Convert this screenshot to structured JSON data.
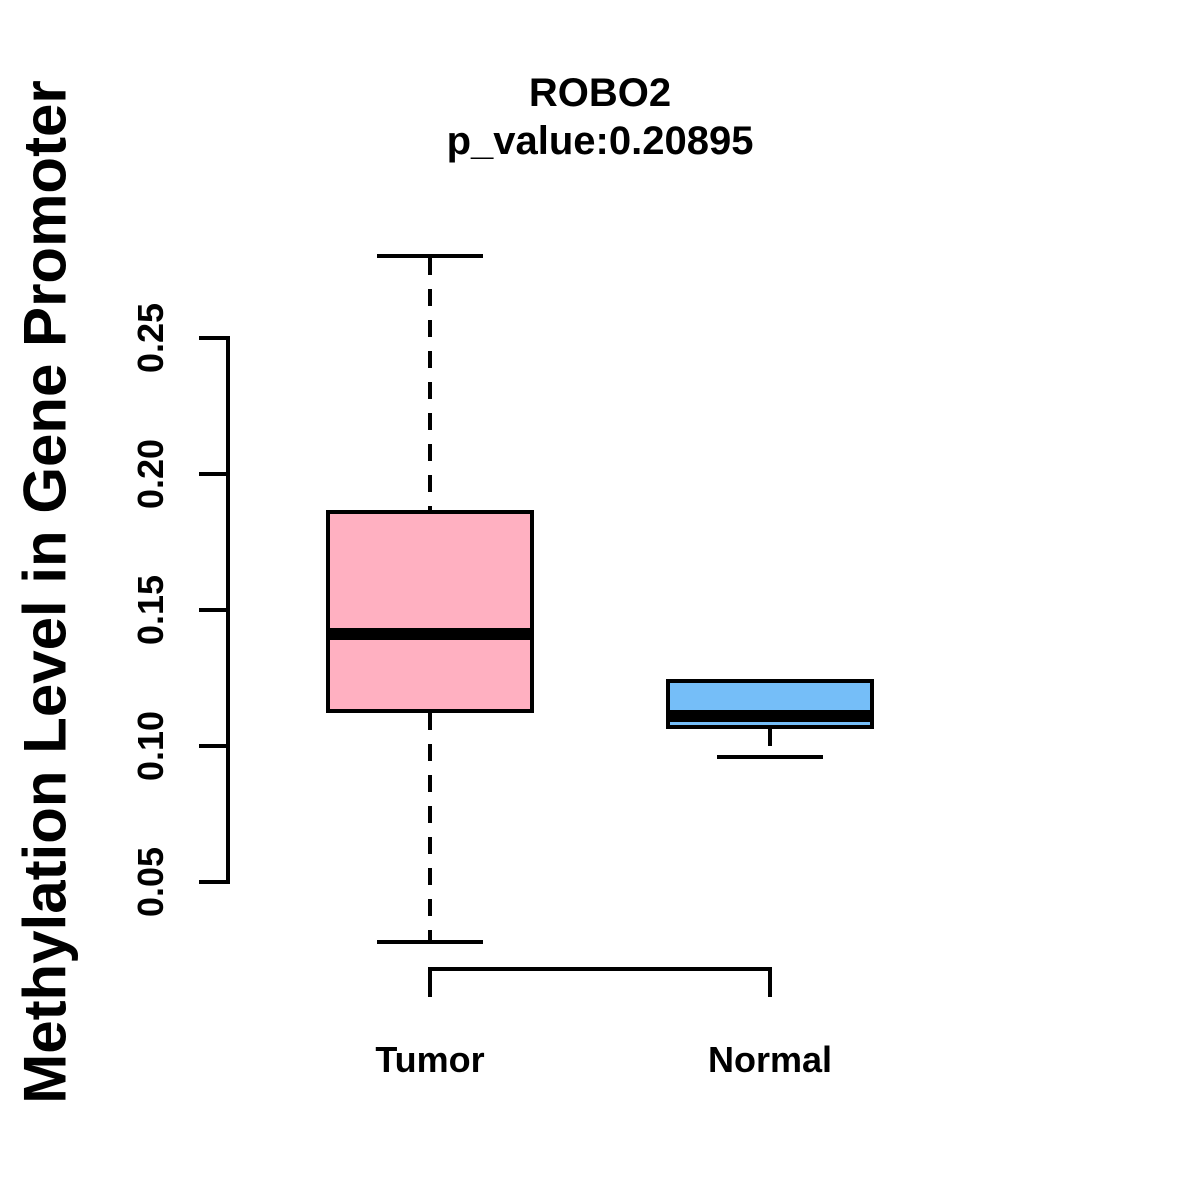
{
  "figure": {
    "title": "ROBO2",
    "subtitle": "p_value:0.20895",
    "y_axis_label": "Methylation Level in Gene Promoter",
    "background_color": "#FFFFFF",
    "line_color": "#000000"
  },
  "chart_data": {
    "type": "boxplot",
    "title": "ROBO2",
    "subtitle": "p_value:0.20895",
    "ylabel": "Methylation Level in Gene Promoter",
    "xlabel": "",
    "categories": [
      "Tumor",
      "Normal"
    ],
    "ytick_labels": [
      "0.05",
      "0.10",
      "0.15",
      "0.20",
      "0.25"
    ],
    "ytick_values": [
      0.05,
      0.1,
      0.15,
      0.2,
      0.25
    ],
    "ylim": [
      0.028,
      0.28
    ],
    "grid": false,
    "legend": "none",
    "series": [
      {
        "name": "Tumor",
        "color": "#FFB0C1",
        "stats": {
          "min": 0.028,
          "q1": 0.113,
          "median": 0.141,
          "q3": 0.186,
          "max": 0.28
        }
      },
      {
        "name": "Normal",
        "color": "#75BEF8",
        "stats": {
          "min": 0.096,
          "q1": 0.107,
          "median": 0.111,
          "q3": 0.124,
          "max": 0.124
        }
      }
    ]
  }
}
